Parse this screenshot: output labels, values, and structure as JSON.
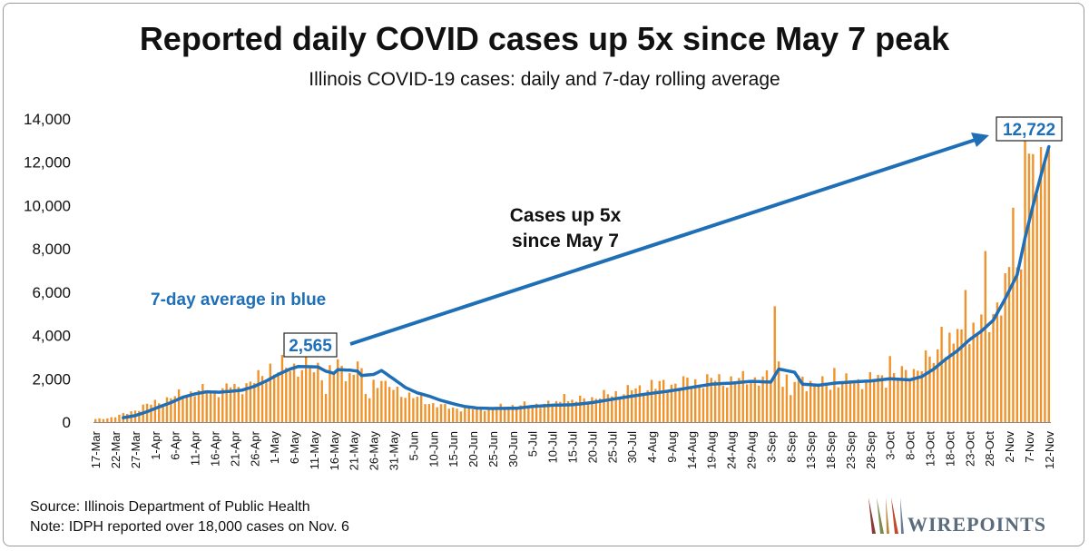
{
  "title": "Reported daily COVID cases up 5x since May 7 peak",
  "subtitle": "Illinois COVID-19 cases: daily and 7-day rolling average",
  "source": "Source: Illinois Department of Public Health",
  "note": "Note: IDPH reported over 18,000 cases on Nov. 6",
  "logo": {
    "text": "WIREPOINTS"
  },
  "colors": {
    "bars": "#F0932B",
    "line": "#1F6FB7",
    "arrow": "#1F6FB7",
    "text": "#111111"
  },
  "chart_data": {
    "type": "bar",
    "series": [
      {
        "name": "Daily reported cases",
        "type": "bar"
      },
      {
        "name": "7-day rolling average",
        "type": "line"
      }
    ],
    "start_date": "17-Mar",
    "num_days": 241,
    "x_tick_labels": [
      "17-Mar",
      "22-Mar",
      "27-Mar",
      "1-Apr",
      "6-Apr",
      "11-Apr",
      "16-Apr",
      "21-Apr",
      "26-Apr",
      "1-May",
      "6-May",
      "11-May",
      "16-May",
      "21-May",
      "26-May",
      "31-May",
      "5-Jun",
      "10-Jun",
      "15-Jun",
      "20-Jun",
      "25-Jun",
      "30-Jun",
      "5-Jul",
      "10-Jul",
      "15-Jul",
      "20-Jul",
      "25-Jul",
      "30-Jul",
      "4-Aug",
      "9-Aug",
      "14-Aug",
      "19-Aug",
      "24-Aug",
      "29-Aug",
      "3-Sep",
      "8-Sep",
      "13-Sep",
      "18-Sep",
      "23-Sep",
      "28-Sep",
      "3-Oct",
      "8-Oct",
      "13-Oct",
      "18-Oct",
      "23-Oct",
      "28-Oct",
      "2-Nov",
      "7-Nov",
      "12-Nov"
    ],
    "y_ticks": [
      0,
      2000,
      4000,
      6000,
      8000,
      10000,
      12000,
      14000
    ],
    "y_tick_labels": [
      "0",
      "2,000",
      "4,000",
      "6,000",
      "8,000",
      "10,000",
      "12,000",
      "14,000"
    ],
    "ylim": [
      0,
      14000
    ],
    "xlabel": "",
    "ylabel": "",
    "daily_anchors": [
      [
        0,
        130
      ],
      [
        3,
        180
      ],
      [
        6,
        300
      ],
      [
        9,
        480
      ],
      [
        12,
        720
      ],
      [
        15,
        900
      ],
      [
        18,
        1050
      ],
      [
        21,
        1250
      ],
      [
        24,
        1350
      ],
      [
        27,
        1450
      ],
      [
        30,
        1420
      ],
      [
        33,
        1550
      ],
      [
        36,
        1600
      ],
      [
        39,
        1800
      ],
      [
        42,
        2100
      ],
      [
        45,
        2400
      ],
      [
        48,
        2500
      ],
      [
        51,
        2550
      ],
      [
        54,
        2600
      ],
      [
        57,
        2450
      ],
      [
        60,
        2400
      ],
      [
        63,
        2300
      ],
      [
        66,
        2200
      ],
      [
        69,
        1900
      ],
      [
        72,
        1700
      ],
      [
        75,
        1500
      ],
      [
        78,
        1300
      ],
      [
        81,
        1100
      ],
      [
        84,
        900
      ],
      [
        87,
        750
      ],
      [
        90,
        650
      ],
      [
        93,
        600
      ],
      [
        96,
        620
      ],
      [
        99,
        650
      ],
      [
        102,
        700
      ],
      [
        105,
        750
      ],
      [
        108,
        780
      ],
      [
        111,
        820
      ],
      [
        114,
        850
      ],
      [
        117,
        900
      ],
      [
        120,
        980
      ],
      [
        123,
        1050
      ],
      [
        126,
        1150
      ],
      [
        129,
        1250
      ],
      [
        132,
        1380
      ],
      [
        135,
        1480
      ],
      [
        138,
        1550
      ],
      [
        141,
        1650
      ],
      [
        144,
        1750
      ],
      [
        147,
        1800
      ],
      [
        150,
        1850
      ],
      [
        153,
        1900
      ],
      [
        156,
        1950
      ],
      [
        159,
        1900
      ],
      [
        162,
        1950
      ],
      [
        165,
        2000
      ],
      [
        168,
        1950
      ],
      [
        170,
        2050
      ],
      [
        171,
        2200
      ],
      [
        172,
        2100
      ],
      [
        175,
        2000
      ],
      [
        178,
        1850
      ],
      [
        181,
        1750
      ],
      [
        184,
        1750
      ],
      [
        187,
        1800
      ],
      [
        190,
        1850
      ],
      [
        193,
        1900
      ],
      [
        196,
        2000
      ],
      [
        199,
        2050
      ],
      [
        202,
        2150
      ],
      [
        205,
        2300
      ],
      [
        208,
        2600
      ],
      [
        211,
        3000
      ],
      [
        214,
        3400
      ],
      [
        217,
        3700
      ],
      [
        220,
        4000
      ],
      [
        223,
        4500
      ],
      [
        226,
        5200
      ],
      [
        229,
        6000
      ],
      [
        232,
        6800
      ],
      [
        235,
        9000
      ],
      [
        236,
        11500
      ],
      [
        238,
        12500
      ],
      [
        240,
        12800
      ]
    ],
    "daily_overrides": [
      {
        "day": 34,
        "value": 1600
      },
      {
        "day": 44,
        "value": 2700
      },
      {
        "day": 47,
        "value": 3100
      },
      {
        "day": 53,
        "value": 3050
      },
      {
        "day": 55,
        "value": 2300
      },
      {
        "day": 58,
        "value": 1300
      },
      {
        "day": 61,
        "value": 2900
      },
      {
        "day": 66,
        "value": 2800
      },
      {
        "day": 68,
        "value": 1300
      },
      {
        "day": 69,
        "value": 1100
      },
      {
        "day": 72,
        "value": 1900
      },
      {
        "day": 118,
        "value": 1300
      },
      {
        "day": 140,
        "value": 1950
      },
      {
        "day": 171,
        "value": 5350
      },
      {
        "day": 172,
        "value": 2800
      },
      {
        "day": 175,
        "value": 1250
      },
      {
        "day": 178,
        "value": 2100
      },
      {
        "day": 186,
        "value": 2500
      },
      {
        "day": 200,
        "value": 3050
      },
      {
        "day": 213,
        "value": 4400
      },
      {
        "day": 217,
        "value": 4300
      },
      {
        "day": 219,
        "value": 6100
      },
      {
        "day": 224,
        "value": 7900
      },
      {
        "day": 231,
        "value": 9900
      },
      {
        "day": 234,
        "value": 13100
      },
      {
        "day": 235,
        "value": 12400
      },
      {
        "day": 237,
        "value": 10500
      },
      {
        "day": 238,
        "value": 12700
      },
      {
        "day": 239,
        "value": 12100
      },
      {
        "day": 240,
        "value": 12600
      }
    ],
    "avg_anchors": [
      [
        7,
        200
      ],
      [
        10,
        300
      ],
      [
        13,
        480
      ],
      [
        16,
        700
      ],
      [
        19,
        900
      ],
      [
        22,
        1150
      ],
      [
        25,
        1300
      ],
      [
        28,
        1400
      ],
      [
        31,
        1380
      ],
      [
        34,
        1420
      ],
      [
        37,
        1480
      ],
      [
        40,
        1650
      ],
      [
        43,
        1900
      ],
      [
        46,
        2200
      ],
      [
        49,
        2450
      ],
      [
        51,
        2565
      ],
      [
        56,
        2550
      ],
      [
        58,
        2350
      ],
      [
        60,
        2250
      ],
      [
        61,
        2420
      ],
      [
        64,
        2400
      ],
      [
        66,
        2350
      ],
      [
        67,
        2150
      ],
      [
        70,
        2200
      ],
      [
        72,
        2380
      ],
      [
        75,
        2000
      ],
      [
        78,
        1600
      ],
      [
        81,
        1350
      ],
      [
        84,
        1200
      ],
      [
        87,
        1000
      ],
      [
        90,
        850
      ],
      [
        93,
        720
      ],
      [
        96,
        650
      ],
      [
        100,
        630
      ],
      [
        106,
        640
      ],
      [
        110,
        720
      ],
      [
        115,
        780
      ],
      [
        120,
        800
      ],
      [
        125,
        900
      ],
      [
        130,
        1050
      ],
      [
        135,
        1200
      ],
      [
        140,
        1330
      ],
      [
        145,
        1450
      ],
      [
        150,
        1600
      ],
      [
        155,
        1750
      ],
      [
        160,
        1800
      ],
      [
        165,
        1880
      ],
      [
        170,
        1850
      ],
      [
        172,
        2450
      ],
      [
        176,
        2300
      ],
      [
        178,
        1750
      ],
      [
        182,
        1700
      ],
      [
        186,
        1800
      ],
      [
        190,
        1850
      ],
      [
        195,
        1900
      ],
      [
        200,
        2000
      ],
      [
        205,
        1950
      ],
      [
        208,
        2100
      ],
      [
        211,
        2450
      ],
      [
        214,
        2900
      ],
      [
        217,
        3300
      ],
      [
        220,
        3800
      ],
      [
        223,
        4200
      ],
      [
        226,
        4700
      ],
      [
        229,
        5700
      ],
      [
        232,
        6800
      ],
      [
        234,
        8500
      ],
      [
        236,
        10000
      ],
      [
        238,
        11400
      ],
      [
        240,
        12722
      ]
    ],
    "annotations": [
      {
        "text": "2,565",
        "day": 51,
        "value": 2565,
        "style": "boxed-blue"
      },
      {
        "text": "12,722",
        "day": 240,
        "value": 12722,
        "style": "boxed-blue"
      },
      {
        "text": "7-day average in blue",
        "style": "blue-bold"
      },
      {
        "text_line1": "Cases up 5x",
        "text_line2": "since May 7",
        "style": "black-bold"
      }
    ],
    "arrow": {
      "from_label": "2,565",
      "to_label": "12,722"
    },
    "grid": false,
    "legend": "none"
  }
}
